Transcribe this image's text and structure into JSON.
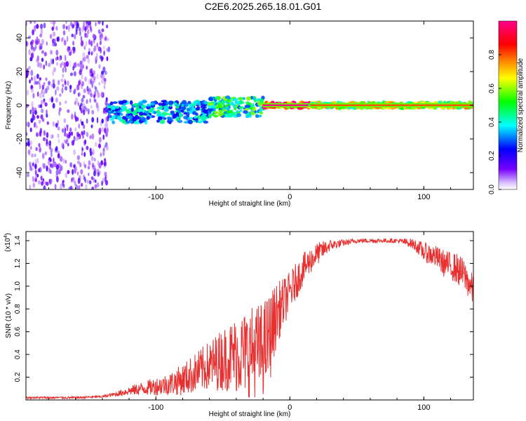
{
  "title": "C2E6.2025.265.18.01.G01",
  "colors": {
    "snr_line": "#e83030",
    "axis": "#000000",
    "background": "#ffffff"
  },
  "chart_data": [
    {
      "type": "heatmap",
      "title": "C2E6.2025.265.18.01.G01",
      "xlabel": "Height of straight line (km)",
      "ylabel": "Frequency (Hz)",
      "xlim": [
        -197,
        137
      ],
      "ylim": [
        -50,
        50
      ],
      "x_ticks": [
        -100,
        0,
        100
      ],
      "y_ticks": [
        -40,
        -20,
        0,
        20,
        40
      ],
      "colorbar": {
        "label": "Normalized spectral amplitude",
        "range": [
          0,
          1
        ],
        "ticks": [
          "0.0",
          "0.2",
          "0.4",
          "0.6",
          "0.8"
        ],
        "colormap": [
          "#ffffff",
          "#7700ff",
          "#0000ff",
          "#00ffff",
          "#00ff00",
          "#ffff00",
          "#ff8800",
          "#ff0000",
          "#ff0088"
        ]
      },
      "regions": [
        {
          "x_range": [
            -197,
            -135
          ],
          "freq_spread_hz": 50,
          "amplitude": 0.15,
          "note": "noise"
        },
        {
          "x_range": [
            -135,
            -60
          ],
          "center_hz": -4,
          "freq_spread_hz": 8,
          "amplitude": 0.35
        },
        {
          "x_range": [
            -60,
            -20
          ],
          "center_hz": -1,
          "freq_spread_hz": 7,
          "amplitude": 0.45
        },
        {
          "x_range": [
            -20,
            15
          ],
          "center_hz": 0,
          "freq_spread_hz": 2,
          "amplitude": 0.85
        },
        {
          "x_range": [
            15,
            137
          ],
          "center_hz": 0,
          "freq_spread_hz": 2,
          "amplitude": 0.6
        }
      ]
    },
    {
      "type": "line",
      "xlabel": "Height of straight line (km)",
      "ylabel": "SNR (10 * v/v)",
      "yscale_label": "(x10",
      "yscale_exp": "4",
      "xlim": [
        -197,
        137
      ],
      "ylim": [
        0,
        1.48
      ],
      "x_ticks": [
        -100,
        0,
        100
      ],
      "y_ticks": [
        0.2,
        0.4,
        0.6,
        0.8,
        1.0,
        1.2,
        1.4
      ],
      "y_tick_labels": [
        "0.2",
        "0.4",
        "0.6",
        "0.8",
        "1.0",
        "1.2",
        "1.4"
      ],
      "series": [
        {
          "name": "SNR",
          "x": [
            -197,
            -180,
            -160,
            -140,
            -130,
            -120,
            -110,
            -100,
            -90,
            -80,
            -70,
            -60,
            -50,
            -40,
            -30,
            -20,
            -15,
            -10,
            -5,
            0,
            5,
            10,
            15,
            20,
            25,
            30,
            40,
            50,
            60,
            70,
            80,
            90,
            95,
            100,
            105,
            110,
            115,
            120,
            125,
            130,
            135,
            137
          ],
          "y": [
            0.02,
            0.02,
            0.02,
            0.03,
            0.05,
            0.08,
            0.1,
            0.12,
            0.14,
            0.18,
            0.24,
            0.3,
            0.36,
            0.4,
            0.42,
            0.45,
            0.55,
            0.75,
            0.85,
            0.95,
            1.05,
            1.15,
            1.22,
            1.28,
            1.32,
            1.36,
            1.38,
            1.4,
            1.4,
            1.4,
            1.4,
            1.38,
            1.35,
            1.3,
            1.28,
            1.25,
            1.2,
            1.18,
            1.15,
            1.1,
            1.0,
            0.95
          ],
          "noise_amplitude": [
            0.01,
            0.01,
            0.01,
            0.01,
            0.02,
            0.04,
            0.06,
            0.08,
            0.1,
            0.14,
            0.18,
            0.22,
            0.28,
            0.34,
            0.4,
            0.42,
            0.4,
            0.28,
            0.22,
            0.18,
            0.16,
            0.14,
            0.12,
            0.1,
            0.08,
            0.05,
            0.03,
            0.02,
            0.02,
            0.02,
            0.02,
            0.04,
            0.06,
            0.08,
            0.1,
            0.1,
            0.12,
            0.12,
            0.14,
            0.14,
            0.14,
            0.14
          ]
        }
      ]
    }
  ]
}
